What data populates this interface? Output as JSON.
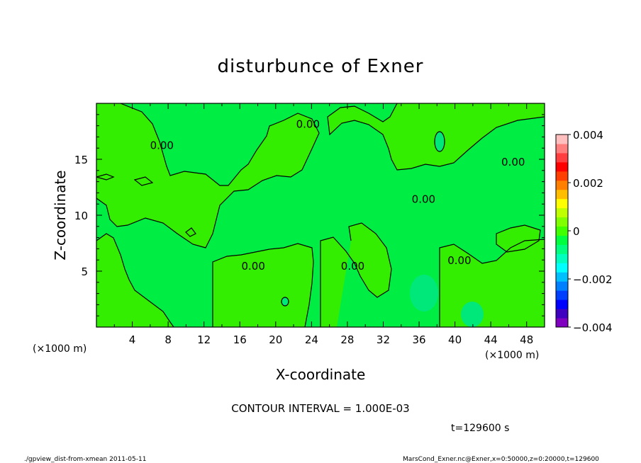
{
  "chart_data": {
    "type": "heatmap",
    "title": "disturbunce of Exner",
    "xlabel": "X-coordinate",
    "ylabel": "Z-coordinate",
    "x_unit": "(×1000 m)",
    "z_unit": "(×1000 m)",
    "xlim": [
      0,
      50
    ],
    "ylim": [
      0,
      20
    ],
    "x_ticks": [
      4,
      8,
      12,
      16,
      20,
      24,
      28,
      32,
      36,
      40,
      44,
      48
    ],
    "y_ticks": [
      5,
      10,
      15
    ],
    "contour_interval_text": "CONTOUR INTERVAL = 1.000E-03",
    "contour_labels": [
      {
        "text": "0.00",
        "x": 17.5,
        "z": 5.5
      },
      {
        "text": "0.00",
        "x": 40.5,
        "z": 6.0
      },
      {
        "text": "0.00",
        "x": 36.5,
        "z": 11.5
      },
      {
        "text": "0.00",
        "x": 46.5,
        "z": 14.8
      },
      {
        "text": "0.00",
        "x": 7.3,
        "z": 16.3
      },
      {
        "text": "0.00",
        "x": 23.6,
        "z": 18.2
      },
      {
        "text": "0.00",
        "x": 28.6,
        "z": 5.5
      }
    ],
    "colorbar": {
      "min": -0.004,
      "max": 0.004,
      "tick_labels": [
        "0.004",
        "0.002",
        "0",
        "−0.002",
        "−0.004"
      ],
      "tick_values": [
        0.004,
        0.002,
        0,
        -0.002,
        -0.004
      ],
      "colors": [
        "#7f00bf",
        "#3f00bf",
        "#0000ff",
        "#003fff",
        "#007fff",
        "#00bfff",
        "#00ffff",
        "#00ffbf",
        "#00ff7f",
        "#00ff3f",
        "#3fff00",
        "#7fff00",
        "#bfff00",
        "#ffff00",
        "#ffbf00",
        "#ff7f00",
        "#ff3f00",
        "#ff0000",
        "#ff3f3f",
        "#ff7f7f",
        "#ffbfbf"
      ]
    },
    "fill_colors": {
      "background": "#00ee44",
      "positive": "#33ee00",
      "negative": "#00e87a"
    }
  },
  "time_label": "t=129600 s",
  "footer": {
    "left": "./gpview_dist-from-xmean  2011-05-11",
    "right": "MarsCond_Exner.nc@Exner,x=0:50000,z=0:20000,t=129600"
  }
}
